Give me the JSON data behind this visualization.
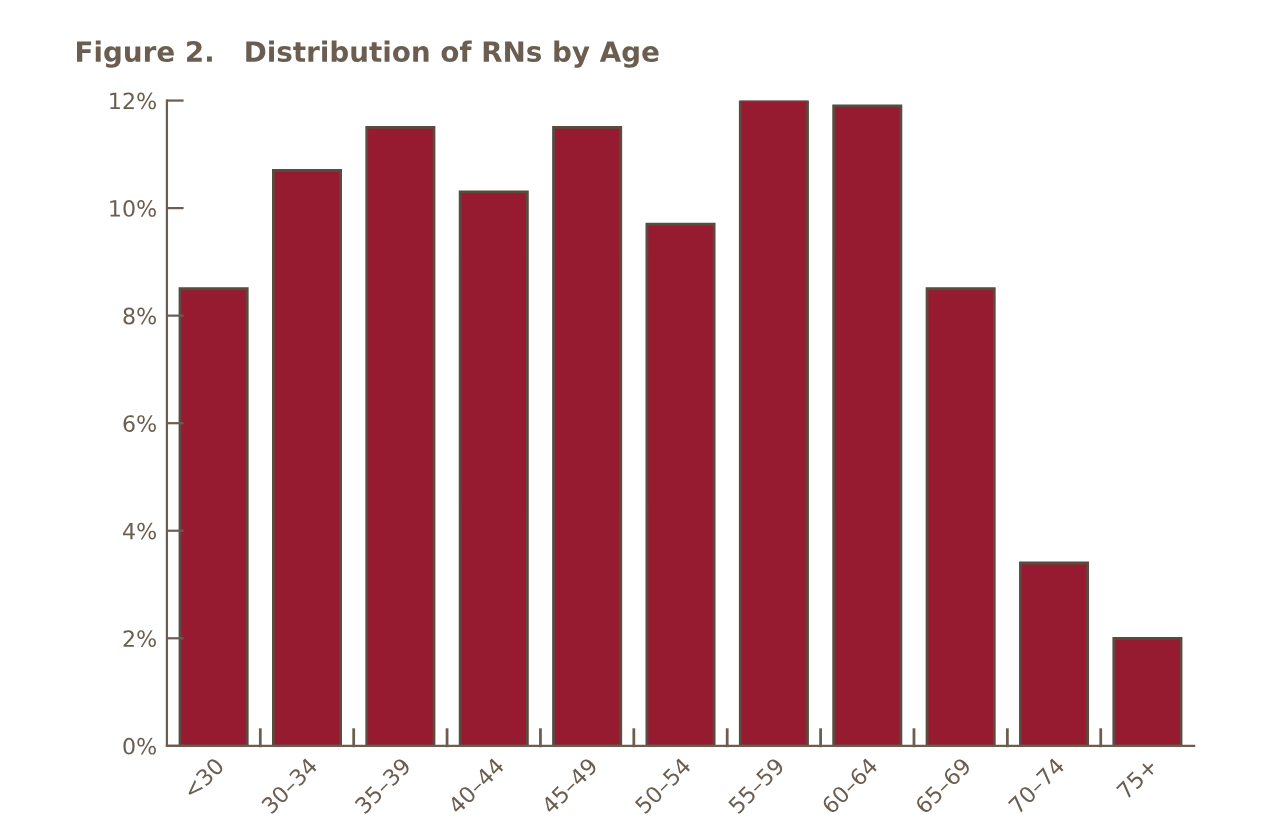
{
  "chart_data": {
    "type": "bar",
    "title": "Figure 2.   Distribution of RNs by Age",
    "categories": [
      "<30",
      "30–34",
      "35–39",
      "40–44",
      "45–49",
      "50–54",
      "55–59",
      "60–64",
      "65–69",
      "70–74",
      "75+"
    ],
    "values": [
      8.5,
      10.7,
      11.5,
      10.3,
      11.5,
      9.7,
      12.0,
      11.9,
      8.5,
      3.4,
      2.0
    ],
    "color": "#961a30",
    "ylim": [
      0,
      12
    ],
    "yticks": [
      {
        "value": 0,
        "label": "0%"
      },
      {
        "value": 2,
        "label": "2%"
      },
      {
        "value": 4,
        "label": "4%"
      },
      {
        "value": 6,
        "label": "6%"
      },
      {
        "value": 8,
        "label": "8%"
      },
      {
        "value": 10,
        "label": "10%"
      },
      {
        "value": 12,
        "label": "12%"
      }
    ],
    "grid": false,
    "legend": false
  }
}
